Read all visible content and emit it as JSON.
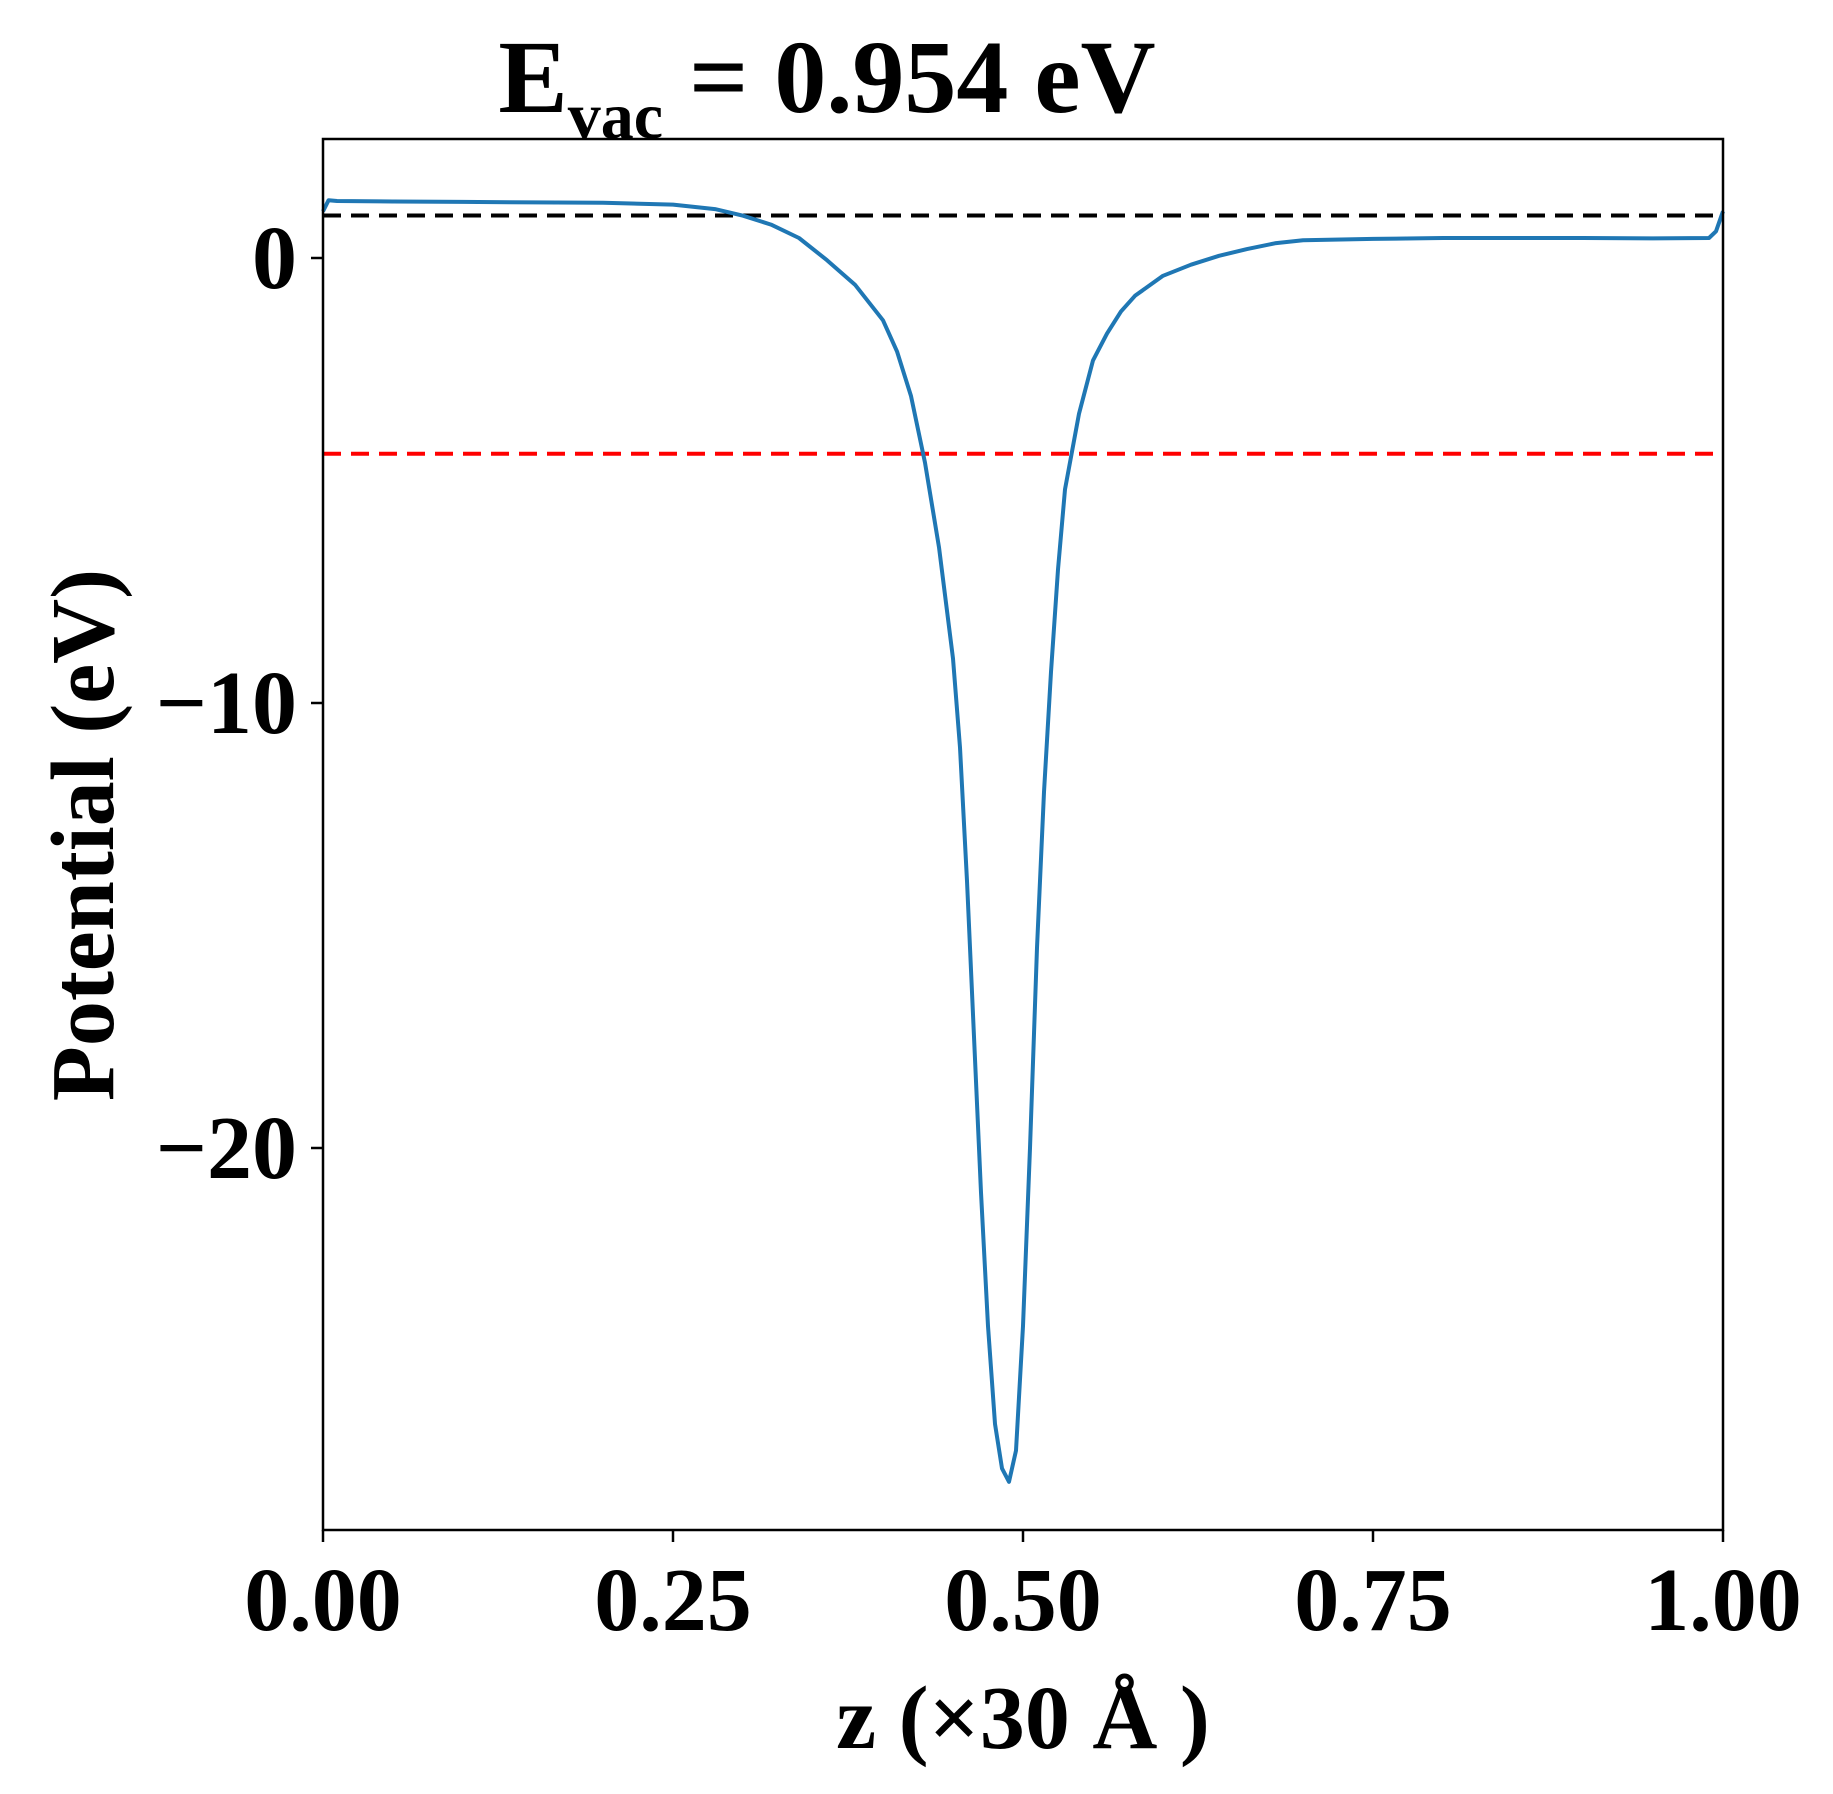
{
  "chart_data": {
    "type": "line",
    "title": {
      "main": "E",
      "subscript": "vac",
      "rest": " = 0.954 eV"
    },
    "xlabel": "z (×30 Å )",
    "ylabel": "Potential (eV)",
    "xlim": [
      0.0,
      1.0
    ],
    "ylim": [
      -28.0,
      2.7
    ],
    "xticks": [
      0.0,
      0.25,
      0.5,
      0.75,
      1.0
    ],
    "xtick_labels": [
      "0.00",
      "0.25",
      "0.50",
      "0.75",
      "1.00"
    ],
    "yticks": [
      0,
      -10,
      -20
    ],
    "ytick_labels": [
      "0",
      "−10",
      "−20"
    ],
    "grid": false,
    "series": [
      {
        "color": "#1f77b4",
        "x": [
          0.0,
          0.004,
          0.01,
          0.05,
          0.1,
          0.15,
          0.2,
          0.25,
          0.28,
          0.3,
          0.32,
          0.34,
          0.36,
          0.38,
          0.4,
          0.41,
          0.42,
          0.43,
          0.44,
          0.45,
          0.455,
          0.46,
          0.465,
          0.47,
          0.475,
          0.48,
          0.485,
          0.49,
          0.495,
          0.5,
          0.505,
          0.51,
          0.515,
          0.52,
          0.525,
          0.53,
          0.54,
          0.55,
          0.56,
          0.57,
          0.58,
          0.6,
          0.62,
          0.64,
          0.66,
          0.68,
          0.7,
          0.75,
          0.8,
          0.85,
          0.9,
          0.95,
          0.99,
          0.995,
          1.0
        ],
        "y": [
          1.05,
          1.3,
          1.28,
          1.27,
          1.26,
          1.25,
          1.24,
          1.2,
          1.1,
          0.95,
          0.75,
          0.45,
          -0.05,
          -0.6,
          -1.4,
          -2.1,
          -3.1,
          -4.6,
          -6.5,
          -9.0,
          -11.0,
          -14.0,
          -17.5,
          -21.0,
          -24.0,
          -26.2,
          -27.2,
          -27.5,
          -26.8,
          -24.0,
          -20.0,
          -15.5,
          -12.0,
          -9.3,
          -7.0,
          -5.2,
          -3.5,
          -2.3,
          -1.7,
          -1.2,
          -0.85,
          -0.4,
          -0.15,
          0.05,
          0.2,
          0.33,
          0.4,
          0.43,
          0.45,
          0.45,
          0.45,
          0.44,
          0.45,
          0.6,
          1.05
        ]
      }
    ],
    "hlines": [
      {
        "y": 0.954,
        "color": "#000000",
        "style": "dashed"
      },
      {
        "y": -4.4,
        "color": "#ff0000",
        "style": "dashed"
      }
    ]
  }
}
